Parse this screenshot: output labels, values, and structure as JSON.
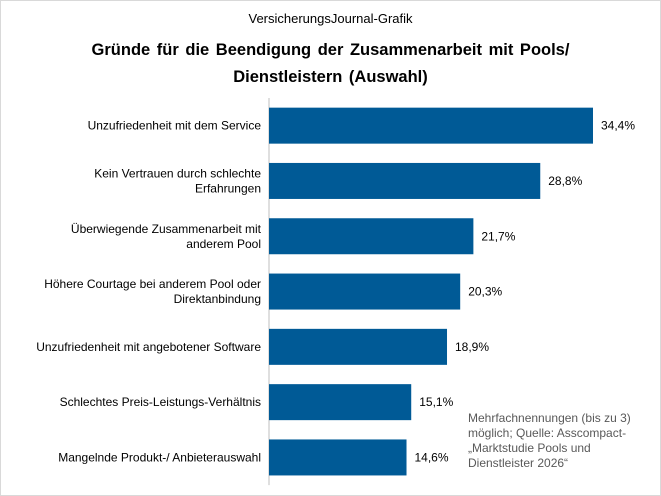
{
  "chart_data": {
    "type": "bar",
    "orientation": "horizontal",
    "subtitle": "VersicherungsJournal-Grafik",
    "title": "Gründe für die Beendigung  der Zusammenarbeit  mit Pools/ Dienstleistern  (Auswahl)",
    "categories": [
      [
        "Unzufriedenheit mit dem Service"
      ],
      [
        "Kein Vertrauen durch schlechte",
        "Erfahrungen"
      ],
      [
        "Überwiegende Zusammenarbeit mit",
        "anderem Pool"
      ],
      [
        "Höhere Courtage bei anderem Pool oder",
        "Direktanbindung"
      ],
      [
        "Unzufriedenheit mit angebotener Software"
      ],
      [
        "Schlechtes Preis-Leistungs-Verhältnis"
      ],
      [
        "Mangelnde Produkt-/ Anbieterauswahl"
      ]
    ],
    "values": [
      34.4,
      28.8,
      21.7,
      20.3,
      18.9,
      15.1,
      14.6
    ],
    "value_labels": [
      "34,4%",
      "28,8%",
      "21,7%",
      "20,3%",
      "18,9%",
      "15,1%",
      "14,6%"
    ],
    "unit": "%",
    "xlim": [
      0,
      36
    ],
    "grid": false,
    "bar_color": "#005a96",
    "note": "Mehrfachnennungen  (bis zu 3) möglich; Quelle:  Asscompact- „Marktstudie Pools und Dienstleister 2026“"
  }
}
